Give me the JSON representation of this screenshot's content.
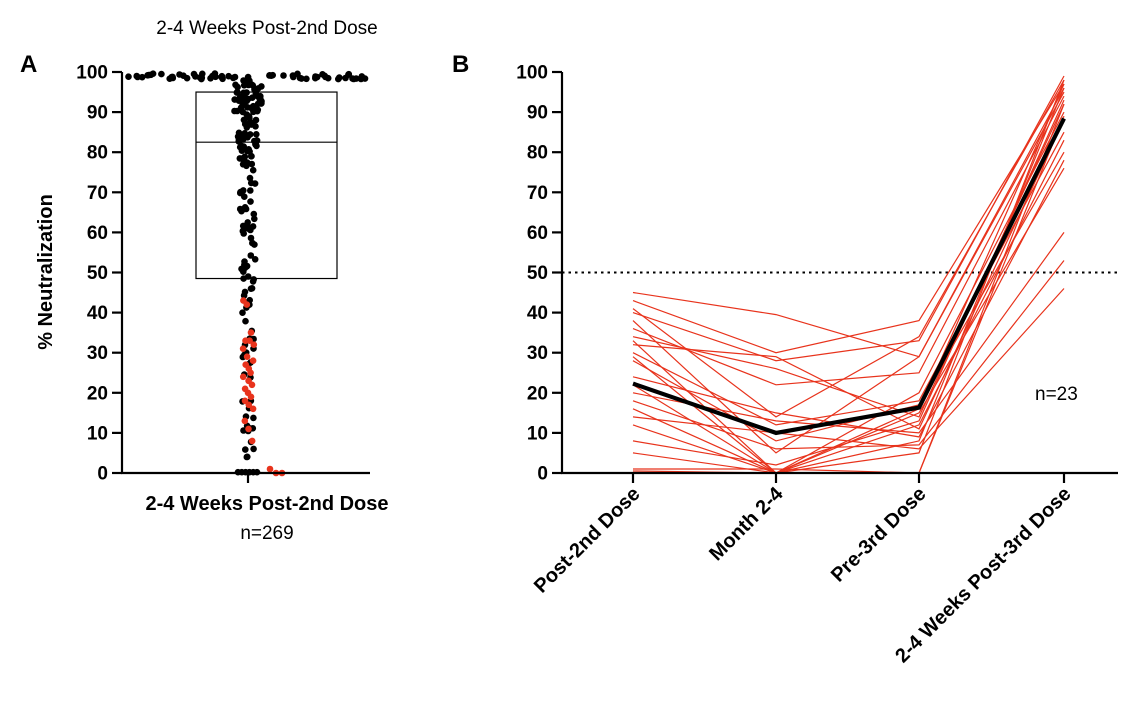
{
  "figure": {
    "top_title": "2-4 Weeks Post-2nd Dose",
    "panel_a_letter": "A",
    "panel_b_letter": "B",
    "colors": {
      "highlight": "#e8331c",
      "base": "#000000"
    }
  },
  "chart_data": [
    {
      "type": "box-swarm",
      "panel": "A",
      "ylabel": "% Neutralization",
      "xlabel": "2-4 Weeks Post-2nd Dose",
      "n_label": "n=269",
      "ylim": [
        0,
        100
      ],
      "yticks": [
        "0",
        "10",
        "20",
        "30",
        "40",
        "50",
        "60",
        "70",
        "80",
        "90",
        "100"
      ],
      "box": {
        "q1": 48.5,
        "median": 82.5,
        "q3": 95
      },
      "point_colors": {
        "black": "#000000",
        "red": "#e8331c"
      },
      "red_values": [
        43,
        42,
        35,
        33,
        33,
        32,
        31,
        29,
        28,
        27,
        26,
        25,
        24,
        23,
        22,
        21,
        20,
        19,
        18,
        17,
        16,
        13,
        11,
        8,
        1,
        0,
        0
      ]
    },
    {
      "type": "line",
      "panel": "B",
      "categories": [
        "Post-2nd Dose",
        "Month 2-4",
        "Pre-3rd Dose",
        "2-4 Weeks Post-3rd Dose"
      ],
      "ylim": [
        0,
        100
      ],
      "yticks": [
        "0",
        "10",
        "20",
        "30",
        "40",
        "50",
        "60",
        "70",
        "80",
        "90",
        "100"
      ],
      "threshold": 50,
      "n_label": "n=23",
      "individual_color": "#e8331c",
      "mean_color": "#000000",
      "mean": [
        22.3,
        10,
        16.3,
        88.4
      ],
      "individuals": [
        [
          45,
          39.5,
          29,
          95
        ],
        [
          43,
          30,
          38,
          97
        ],
        [
          41,
          14,
          34,
          98
        ],
        [
          40,
          28,
          33,
          99
        ],
        [
          38,
          5,
          29,
          96
        ],
        [
          36,
          22,
          25,
          94
        ],
        [
          34,
          26,
          14,
          92
        ],
        [
          33,
          0,
          20,
          90
        ],
        [
          32,
          29,
          11,
          88
        ],
        [
          30,
          12,
          18,
          85
        ],
        [
          29,
          0,
          12,
          83
        ],
        [
          28,
          8,
          17,
          80
        ],
        [
          24,
          15,
          9,
          78
        ],
        [
          22,
          0,
          15,
          76
        ],
        [
          20,
          13,
          10,
          60
        ],
        [
          18,
          6,
          7,
          53
        ],
        [
          16,
          0,
          16,
          97
        ],
        [
          14,
          10,
          6,
          46
        ],
        [
          12,
          0,
          8,
          96
        ],
        [
          8,
          2,
          13,
          93
        ],
        [
          5,
          0,
          0,
          92
        ],
        [
          1,
          1,
          0,
          89
        ],
        [
          0.5,
          0,
          5,
          98
        ]
      ]
    }
  ]
}
